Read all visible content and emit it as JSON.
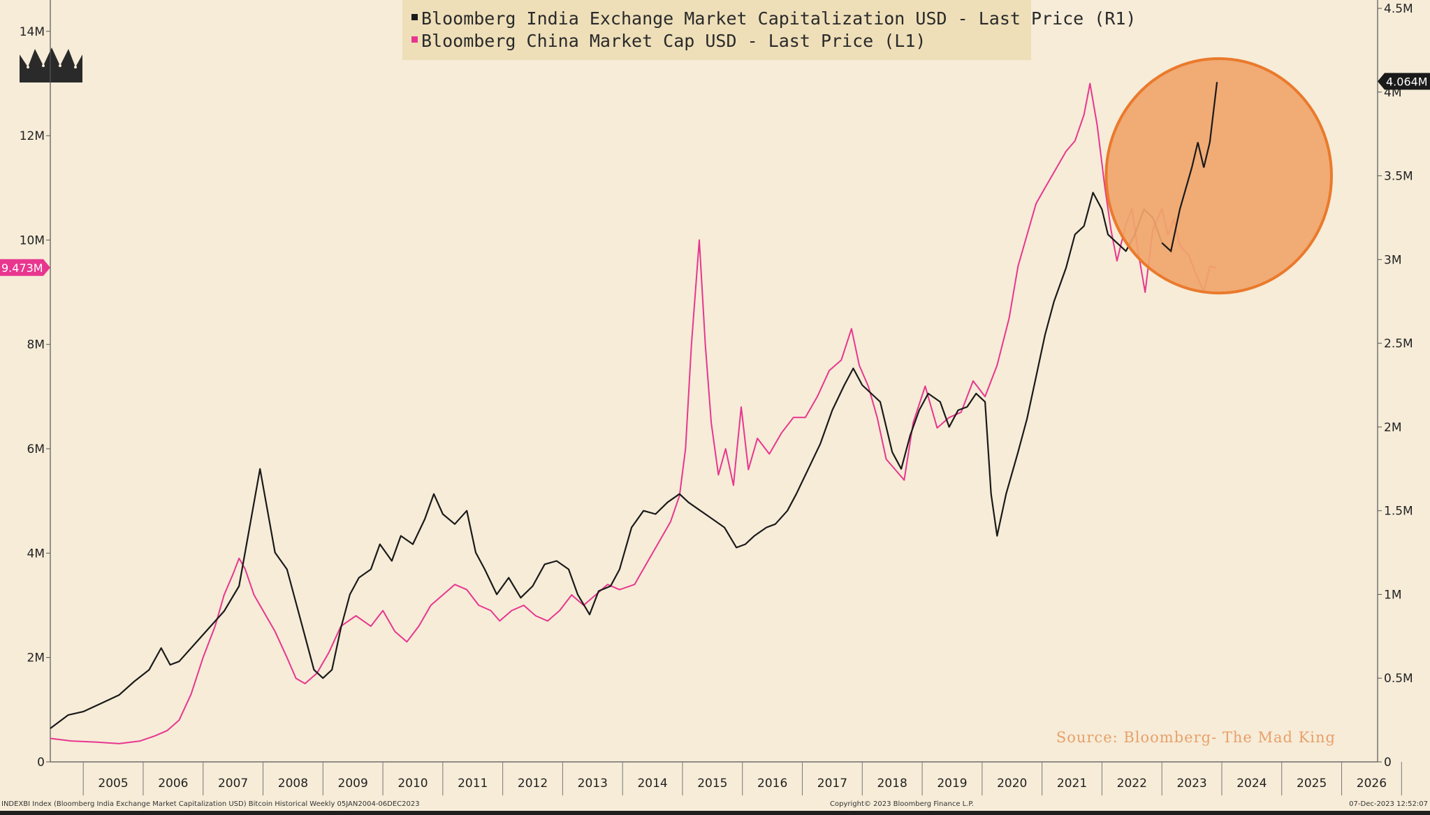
{
  "chart_data": {
    "type": "line",
    "title": "",
    "legend": {
      "placement": "top-center",
      "entries": [
        {
          "label": "Bloomberg India Exchange Market Capitalization USD - Last Price (R1)",
          "color": "#1a1a1a"
        },
        {
          "label": "Bloomberg China Market Cap USD - Last Price (L1)",
          "color": "#e8368f"
        }
      ]
    },
    "x_axis": {
      "labels": [
        "2005",
        "2006",
        "2007",
        "2008",
        "2009",
        "2010",
        "2011",
        "2012",
        "2013",
        "2014",
        "2015",
        "2016",
        "2017",
        "2018",
        "2019",
        "2020",
        "2021",
        "2022",
        "2023",
        "2024",
        "2025",
        "2026"
      ],
      "range": [
        2004.45,
        2026.6
      ]
    },
    "y_left": {
      "ticks": [
        0,
        2,
        4,
        6,
        8,
        10,
        12,
        14
      ],
      "tick_labels": [
        "0",
        "2M",
        "4M",
        "6M",
        "8M",
        "10M",
        "12M",
        "14M"
      ],
      "range": [
        0,
        14.6
      ],
      "last_value_label": "9.473M",
      "last_value": 9.473,
      "last_value_color": "#e8368f"
    },
    "y_right": {
      "ticks": [
        0,
        0.5,
        1,
        1.5,
        2,
        2.5,
        3,
        3.5,
        4,
        4.5
      ],
      "tick_labels": [
        "0",
        "0.5M",
        "1M",
        "1.5M",
        "2M",
        "2.5M",
        "3M",
        "3.5M",
        "4M",
        "4.5M"
      ],
      "range": [
        0,
        4.55
      ],
      "last_value_label": "4.064M",
      "last_value": 4.064,
      "last_value_color": "#1a1a1a"
    },
    "series": [
      {
        "name": "Bloomberg India Exchange Market Capitalization USD - Last Price (R1)",
        "axis": "right",
        "color": "#1a1a1a",
        "points": [
          [
            2004.45,
            0.2
          ],
          [
            2004.75,
            0.28
          ],
          [
            2005.0,
            0.3
          ],
          [
            2005.3,
            0.35
          ],
          [
            2005.6,
            0.4
          ],
          [
            2005.85,
            0.48
          ],
          [
            2006.1,
            0.55
          ],
          [
            2006.3,
            0.68
          ],
          [
            2006.45,
            0.58
          ],
          [
            2006.6,
            0.6
          ],
          [
            2006.9,
            0.72
          ],
          [
            2007.1,
            0.8
          ],
          [
            2007.35,
            0.9
          ],
          [
            2007.6,
            1.05
          ],
          [
            2007.8,
            1.45
          ],
          [
            2007.95,
            1.75
          ],
          [
            2008.05,
            1.55
          ],
          [
            2008.2,
            1.25
          ],
          [
            2008.4,
            1.15
          ],
          [
            2008.55,
            0.95
          ],
          [
            2008.7,
            0.75
          ],
          [
            2008.85,
            0.55
          ],
          [
            2009.0,
            0.5
          ],
          [
            2009.15,
            0.55
          ],
          [
            2009.3,
            0.8
          ],
          [
            2009.45,
            1.0
          ],
          [
            2009.6,
            1.1
          ],
          [
            2009.8,
            1.15
          ],
          [
            2009.95,
            1.3
          ],
          [
            2010.15,
            1.2
          ],
          [
            2010.3,
            1.35
          ],
          [
            2010.5,
            1.3
          ],
          [
            2010.7,
            1.45
          ],
          [
            2010.85,
            1.6
          ],
          [
            2011.0,
            1.48
          ],
          [
            2011.2,
            1.42
          ],
          [
            2011.4,
            1.5
          ],
          [
            2011.55,
            1.25
          ],
          [
            2011.7,
            1.15
          ],
          [
            2011.9,
            1.0
          ],
          [
            2012.1,
            1.1
          ],
          [
            2012.3,
            0.98
          ],
          [
            2012.5,
            1.05
          ],
          [
            2012.7,
            1.18
          ],
          [
            2012.9,
            1.2
          ],
          [
            2013.1,
            1.15
          ],
          [
            2013.25,
            1.0
          ],
          [
            2013.45,
            0.88
          ],
          [
            2013.6,
            1.02
          ],
          [
            2013.8,
            1.05
          ],
          [
            2013.95,
            1.15
          ],
          [
            2014.15,
            1.4
          ],
          [
            2014.35,
            1.5
          ],
          [
            2014.55,
            1.48
          ],
          [
            2014.75,
            1.55
          ],
          [
            2014.95,
            1.6
          ],
          [
            2015.1,
            1.55
          ],
          [
            2015.3,
            1.5
          ],
          [
            2015.5,
            1.45
          ],
          [
            2015.7,
            1.4
          ],
          [
            2015.9,
            1.28
          ],
          [
            2016.05,
            1.3
          ],
          [
            2016.2,
            1.35
          ],
          [
            2016.4,
            1.4
          ],
          [
            2016.55,
            1.42
          ],
          [
            2016.75,
            1.5
          ],
          [
            2016.9,
            1.6
          ],
          [
            2017.1,
            1.75
          ],
          [
            2017.3,
            1.9
          ],
          [
            2017.5,
            2.1
          ],
          [
            2017.7,
            2.25
          ],
          [
            2017.85,
            2.35
          ],
          [
            2018.0,
            2.25
          ],
          [
            2018.15,
            2.2
          ],
          [
            2018.3,
            2.15
          ],
          [
            2018.5,
            1.85
          ],
          [
            2018.65,
            1.75
          ],
          [
            2018.8,
            1.95
          ],
          [
            2018.95,
            2.1
          ],
          [
            2019.1,
            2.2
          ],
          [
            2019.3,
            2.15
          ],
          [
            2019.45,
            2.0
          ],
          [
            2019.6,
            2.1
          ],
          [
            2019.75,
            2.12
          ],
          [
            2019.9,
            2.2
          ],
          [
            2020.05,
            2.15
          ],
          [
            2020.15,
            1.6
          ],
          [
            2020.25,
            1.35
          ],
          [
            2020.4,
            1.6
          ],
          [
            2020.6,
            1.85
          ],
          [
            2020.75,
            2.05
          ],
          [
            2020.9,
            2.3
          ],
          [
            2021.05,
            2.55
          ],
          [
            2021.2,
            2.75
          ],
          [
            2021.4,
            2.95
          ],
          [
            2021.55,
            3.15
          ],
          [
            2021.7,
            3.2
          ],
          [
            2021.85,
            3.4
          ],
          [
            2022.0,
            3.3
          ],
          [
            2022.1,
            3.15
          ],
          [
            2022.25,
            3.1
          ],
          [
            2022.4,
            3.05
          ],
          [
            2022.55,
            3.15
          ],
          [
            2022.7,
            3.3
          ],
          [
            2022.85,
            3.25
          ],
          [
            2023.0,
            3.1
          ],
          [
            2023.15,
            3.05
          ],
          [
            2023.3,
            3.3
          ],
          [
            2023.5,
            3.55
          ],
          [
            2023.6,
            3.7
          ],
          [
            2023.7,
            3.55
          ],
          [
            2023.8,
            3.7
          ],
          [
            2023.92,
            4.06
          ]
        ]
      },
      {
        "name": "Bloomberg China Market Cap USD - Last Price (L1)",
        "axis": "left",
        "color": "#e8368f",
        "points": [
          [
            2004.45,
            0.45
          ],
          [
            2004.8,
            0.4
          ],
          [
            2005.2,
            0.38
          ],
          [
            2005.6,
            0.35
          ],
          [
            2005.95,
            0.4
          ],
          [
            2006.2,
            0.5
          ],
          [
            2006.4,
            0.6
          ],
          [
            2006.6,
            0.8
          ],
          [
            2006.8,
            1.3
          ],
          [
            2007.0,
            2.0
          ],
          [
            2007.2,
            2.6
          ],
          [
            2007.35,
            3.2
          ],
          [
            2007.5,
            3.6
          ],
          [
            2007.6,
            3.9
          ],
          [
            2007.7,
            3.7
          ],
          [
            2007.85,
            3.2
          ],
          [
            2008.0,
            2.9
          ],
          [
            2008.2,
            2.5
          ],
          [
            2008.4,
            2.0
          ],
          [
            2008.55,
            1.6
          ],
          [
            2008.7,
            1.5
          ],
          [
            2008.9,
            1.7
          ],
          [
            2009.1,
            2.1
          ],
          [
            2009.3,
            2.6
          ],
          [
            2009.55,
            2.8
          ],
          [
            2009.8,
            2.6
          ],
          [
            2010.0,
            2.9
          ],
          [
            2010.2,
            2.5
          ],
          [
            2010.4,
            2.3
          ],
          [
            2010.6,
            2.6
          ],
          [
            2010.8,
            3.0
          ],
          [
            2011.0,
            3.2
          ],
          [
            2011.2,
            3.4
          ],
          [
            2011.4,
            3.3
          ],
          [
            2011.6,
            3.0
          ],
          [
            2011.8,
            2.9
          ],
          [
            2011.95,
            2.7
          ],
          [
            2012.15,
            2.9
          ],
          [
            2012.35,
            3.0
          ],
          [
            2012.55,
            2.8
          ],
          [
            2012.75,
            2.7
          ],
          [
            2012.95,
            2.9
          ],
          [
            2013.15,
            3.2
          ],
          [
            2013.35,
            3.0
          ],
          [
            2013.55,
            3.2
          ],
          [
            2013.75,
            3.4
          ],
          [
            2013.95,
            3.3
          ],
          [
            2014.2,
            3.4
          ],
          [
            2014.4,
            3.8
          ],
          [
            2014.6,
            4.2
          ],
          [
            2014.8,
            4.6
          ],
          [
            2014.95,
            5.1
          ],
          [
            2015.05,
            6.0
          ],
          [
            2015.15,
            8.0
          ],
          [
            2015.28,
            10.0
          ],
          [
            2015.38,
            8.0
          ],
          [
            2015.48,
            6.5
          ],
          [
            2015.6,
            5.5
          ],
          [
            2015.72,
            6.0
          ],
          [
            2015.85,
            5.3
          ],
          [
            2015.98,
            6.8
          ],
          [
            2016.1,
            5.6
          ],
          [
            2016.25,
            6.2
          ],
          [
            2016.45,
            5.9
          ],
          [
            2016.65,
            6.3
          ],
          [
            2016.85,
            6.6
          ],
          [
            2017.05,
            6.6
          ],
          [
            2017.25,
            7.0
          ],
          [
            2017.45,
            7.5
          ],
          [
            2017.65,
            7.7
          ],
          [
            2017.82,
            8.3
          ],
          [
            2017.95,
            7.6
          ],
          [
            2018.1,
            7.2
          ],
          [
            2018.25,
            6.6
          ],
          [
            2018.4,
            5.8
          ],
          [
            2018.55,
            5.6
          ],
          [
            2018.7,
            5.4
          ],
          [
            2018.85,
            6.5
          ],
          [
            2019.05,
            7.2
          ],
          [
            2019.25,
            6.4
          ],
          [
            2019.45,
            6.6
          ],
          [
            2019.65,
            6.7
          ],
          [
            2019.85,
            7.3
          ],
          [
            2020.05,
            7.0
          ],
          [
            2020.25,
            7.6
          ],
          [
            2020.45,
            8.5
          ],
          [
            2020.6,
            9.5
          ],
          [
            2020.75,
            10.1
          ],
          [
            2020.9,
            10.7
          ],
          [
            2021.05,
            11.0
          ],
          [
            2021.2,
            11.3
          ],
          [
            2021.4,
            11.7
          ],
          [
            2021.55,
            11.9
          ],
          [
            2021.7,
            12.4
          ],
          [
            2021.8,
            13.0
          ],
          [
            2021.92,
            12.2
          ],
          [
            2022.05,
            11.0
          ],
          [
            2022.15,
            10.2
          ],
          [
            2022.25,
            9.6
          ],
          [
            2022.4,
            10.3
          ],
          [
            2022.5,
            10.6
          ],
          [
            2022.6,
            9.8
          ],
          [
            2022.72,
            9.0
          ],
          [
            2022.85,
            10.2
          ],
          [
            2023.0,
            10.6
          ],
          [
            2023.1,
            10.1
          ],
          [
            2023.2,
            10.4
          ],
          [
            2023.3,
            9.9
          ],
          [
            2023.45,
            9.7
          ],
          [
            2023.55,
            9.4
          ],
          [
            2023.7,
            9.0
          ],
          [
            2023.8,
            9.5
          ],
          [
            2023.9,
            9.47
          ]
        ]
      }
    ],
    "highlight_circle": {
      "center": [
        2023.95,
        3.5
      ],
      "radius_x_years": 1.88,
      "radius_y_right_units": 0.7,
      "fill": "#f0a56d",
      "stroke": "#ea7a2c"
    },
    "source_note": "Source: Bloomberg- The Mad King",
    "grid": false
  },
  "footer": {
    "left": "INDEXBI Index (Bloomberg India Exchange Market Capitalization USD) Bitcoin Historical  Weekly 05JAN2004-06DEC2023",
    "center": "Copyright© 2023 Bloomberg Finance L.P.",
    "right": "07-Dec-2023 12:52:07"
  },
  "colors": {
    "background": "#f6ecd8",
    "axis": "#555555",
    "legend_box": "#eedfb9"
  },
  "logo": {
    "icon": "crown-icon"
  }
}
